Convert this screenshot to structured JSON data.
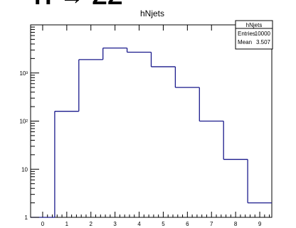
{
  "header": {
    "cutoff_title": "H → ZZ"
  },
  "chart_data": {
    "type": "bar",
    "title": "hNjets",
    "xlabel": "",
    "ylabel": "",
    "x_bin_edges": [
      -0.5,
      0.5,
      1.5,
      2.5,
      3.5,
      4.5,
      5.5,
      6.5,
      7.5,
      8.5,
      9.5
    ],
    "categories": [
      "0",
      "1",
      "2",
      "3",
      "4",
      "5",
      "6",
      "7",
      "8",
      "9"
    ],
    "values": [
      0,
      160,
      1900,
      3300,
      2700,
      1350,
      500,
      100,
      16,
      2
    ],
    "xlim": [
      -0.5,
      9.5
    ],
    "ylim": [
      1,
      10000
    ],
    "log_y": true,
    "x_tick_labels": [
      "0",
      "1",
      "2",
      "3",
      "4",
      "5",
      "6",
      "7",
      "8",
      "9"
    ],
    "y_tick_labels": [
      {
        "value": 1,
        "label": "1"
      },
      {
        "value": 10,
        "label": "10"
      },
      {
        "value": 100,
        "label": "10²"
      },
      {
        "value": 1000,
        "label": "10³"
      }
    ],
    "legend": "top-right",
    "grid": false,
    "color": "#1a1a8c",
    "stats": {
      "title": "hNjets",
      "rows": [
        {
          "label": "Entries",
          "value": "10000"
        },
        {
          "label": "Mean",
          "value": "3.507"
        }
      ]
    }
  }
}
